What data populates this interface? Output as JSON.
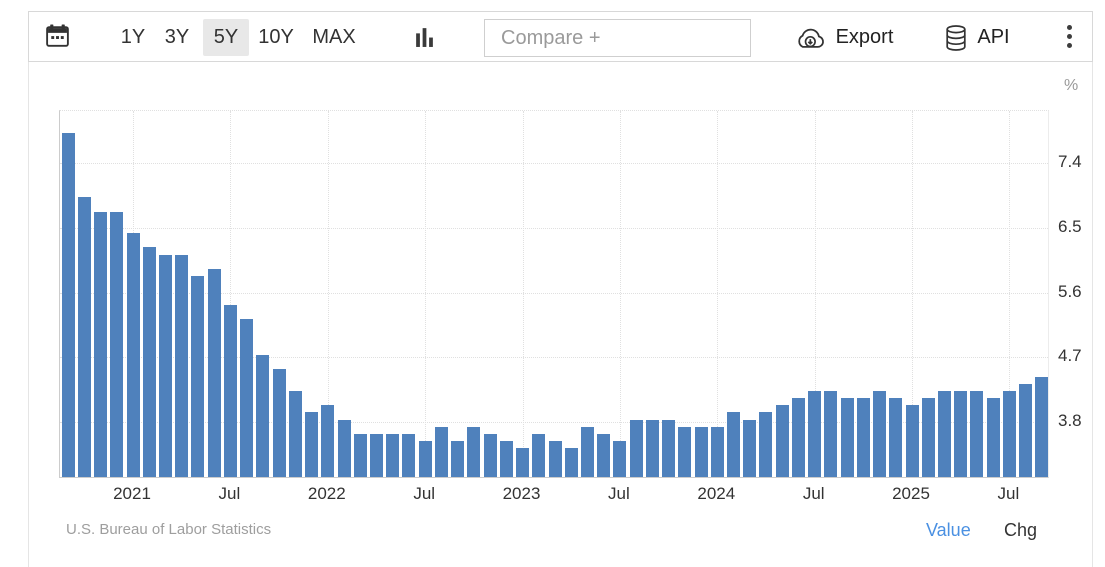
{
  "toolbar": {
    "ranges": [
      {
        "label": "1Y",
        "active": false
      },
      {
        "label": "3Y",
        "active": false
      },
      {
        "label": "5Y",
        "active": true
      },
      {
        "label": "10Y",
        "active": false
      },
      {
        "label": "MAX",
        "active": false
      }
    ],
    "active_range_bg": "#e8e8e8",
    "compare": {
      "placeholder": "Compare +",
      "value": ""
    },
    "export_label": "Export",
    "api_label": "API",
    "icons": {
      "calendar": "calendar-icon",
      "chart_type": "bar-chart-icon",
      "export": "cloud-download-icon",
      "api": "database-icon",
      "menu": "kebab-menu-icon"
    }
  },
  "chart_data": {
    "type": "bar",
    "unit_label": "%",
    "bar_color": "#4f81bc",
    "grid_style": "dotted",
    "y_min": 3.0,
    "y_max": 8.13,
    "y_ticks": [
      3.8,
      4.7,
      5.6,
      6.5,
      7.4
    ],
    "x_ticks": [
      {
        "index": 4,
        "label": "2021"
      },
      {
        "index": 10,
        "label": "Jul"
      },
      {
        "index": 16,
        "label": "2022"
      },
      {
        "index": 22,
        "label": "Jul"
      },
      {
        "index": 28,
        "label": "2023"
      },
      {
        "index": 34,
        "label": "Jul"
      },
      {
        "index": 40,
        "label": "2024"
      },
      {
        "index": 46,
        "label": "Jul"
      },
      {
        "index": 52,
        "label": "2025"
      },
      {
        "index": 58,
        "label": "Jul"
      }
    ],
    "months": [
      "2020-09",
      "2020-10",
      "2020-11",
      "2020-12",
      "2021-01",
      "2021-02",
      "2021-03",
      "2021-04",
      "2021-05",
      "2021-06",
      "2021-07",
      "2021-08",
      "2021-09",
      "2021-10",
      "2021-11",
      "2021-12",
      "2022-01",
      "2022-02",
      "2022-03",
      "2022-04",
      "2022-05",
      "2022-06",
      "2022-07",
      "2022-08",
      "2022-09",
      "2022-10",
      "2022-11",
      "2022-12",
      "2023-01",
      "2023-02",
      "2023-03",
      "2023-04",
      "2023-05",
      "2023-06",
      "2023-07",
      "2023-08",
      "2023-09",
      "2023-10",
      "2023-11",
      "2023-12",
      "2024-01",
      "2024-02",
      "2024-03",
      "2024-04",
      "2024-05",
      "2024-06",
      "2024-07",
      "2024-08",
      "2024-09",
      "2024-10",
      "2024-11",
      "2024-12",
      "2025-01",
      "2025-02",
      "2025-03",
      "2025-04",
      "2025-05",
      "2025-06",
      "2025-07",
      "2025-08",
      "2025-09"
    ],
    "values": [
      7.8,
      6.9,
      6.7,
      6.7,
      6.4,
      6.2,
      6.1,
      6.1,
      5.8,
      5.9,
      5.4,
      5.2,
      4.7,
      4.5,
      4.2,
      3.9,
      4.0,
      3.8,
      3.6,
      3.6,
      3.6,
      3.6,
      3.5,
      3.7,
      3.5,
      3.7,
      3.6,
      3.5,
      3.4,
      3.6,
      3.5,
      3.4,
      3.7,
      3.6,
      3.5,
      3.8,
      3.8,
      3.8,
      3.7,
      3.7,
      3.7,
      3.9,
      3.8,
      3.9,
      4.0,
      4.1,
      4.2,
      4.2,
      4.1,
      4.1,
      4.2,
      4.1,
      4.0,
      4.1,
      4.2,
      4.2,
      4.2,
      4.1,
      4.2,
      4.3,
      4.4
    ]
  },
  "footer": {
    "source": "U.S. Bureau of Labor Statistics",
    "toggles": [
      {
        "label": "Value",
        "active": true,
        "color": "#4a90e2"
      },
      {
        "label": "Chg",
        "active": false,
        "color": "#333333"
      }
    ]
  }
}
